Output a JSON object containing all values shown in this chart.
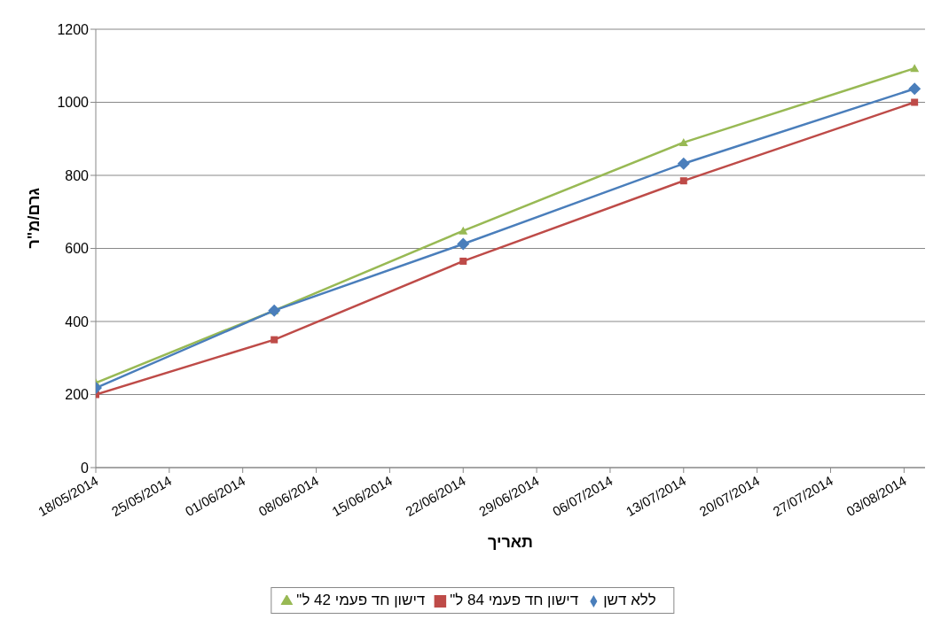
{
  "chart_data": {
    "type": "line",
    "xlabel": "תאריך",
    "ylabel": "גרם/מ\"ר",
    "x": [
      "2014-05-18",
      "2014-06-04",
      "2014-06-22",
      "2014-07-13",
      "2014-08-04"
    ],
    "series": [
      {
        "name": "ללא דשן",
        "color": "#4a7ebb",
        "marker": "diamond",
        "values": [
          218,
          430,
          612,
          832,
          1037
        ]
      },
      {
        "name": "דישון חד פעמי 84 ל\"",
        "color": "#be4b48",
        "marker": "square",
        "values": [
          200,
          350,
          565,
          785,
          1000
        ]
      },
      {
        "name": "דישון חד פעמי 42 ל\"",
        "color": "#98b954",
        "marker": "triangle",
        "values": [
          232,
          430,
          648,
          890,
          1093
        ]
      }
    ],
    "xlim": [
      "2014-05-18",
      "2014-08-05"
    ],
    "xticks": [
      {
        "value": "2014-05-18",
        "label": "18/05/2014"
      },
      {
        "value": "2014-05-25",
        "label": "25/05/2014"
      },
      {
        "value": "2014-06-01",
        "label": "01/06/2014"
      },
      {
        "value": "2014-06-08",
        "label": "08/06/2014"
      },
      {
        "value": "2014-06-15",
        "label": "15/06/2014"
      },
      {
        "value": "2014-06-22",
        "label": "22/06/2014"
      },
      {
        "value": "2014-06-29",
        "label": "29/06/2014"
      },
      {
        "value": "2014-07-06",
        "label": "06/07/2014"
      },
      {
        "value": "2014-07-13",
        "label": "13/07/2014"
      },
      {
        "value": "2014-07-20",
        "label": "20/07/2014"
      },
      {
        "value": "2014-07-27",
        "label": "27/07/2014"
      },
      {
        "value": "2014-08-03",
        "label": "03/08/2014"
      }
    ],
    "ylim": [
      0,
      1200
    ],
    "yticks": [
      0,
      200,
      400,
      600,
      800,
      1000,
      1200
    ],
    "grid": "y",
    "legend": "bottom",
    "line_style": "solid"
  }
}
